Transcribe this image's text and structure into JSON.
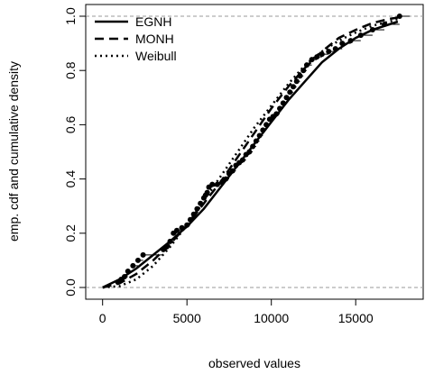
{
  "chart_data": {
    "type": "line",
    "title": "",
    "xlabel": "observed values",
    "ylabel": "emp. cdf and cumulative density",
    "xlim": [
      -1000,
      19000
    ],
    "ylim": [
      0,
      1
    ],
    "x_ticks": [
      "0",
      "5000",
      "10000",
      "15000"
    ],
    "y_ticks": [
      "0.0",
      "0.2",
      "0.4",
      "0.6",
      "0.8",
      "1.0"
    ],
    "x_tick_values": [
      0,
      5000,
      10000,
      15000
    ],
    "y_tick_values": [
      0,
      0.2,
      0.4,
      0.6,
      0.8,
      1.0
    ],
    "reference_lines_y": [
      0,
      1
    ],
    "legend_position": "top-left",
    "series": [
      {
        "name": "EGNH",
        "style": "solid",
        "x": [
          0,
          1000,
          2000,
          3000,
          4000,
          5000,
          6000,
          7000,
          8000,
          9000,
          10000,
          11000,
          12000,
          13000,
          14000,
          15000,
          16000,
          17000,
          17500
        ],
        "y": [
          0.0,
          0.03,
          0.07,
          0.12,
          0.17,
          0.225,
          0.29,
          0.37,
          0.45,
          0.53,
          0.61,
          0.69,
          0.76,
          0.83,
          0.88,
          0.92,
          0.95,
          0.97,
          0.98
        ]
      },
      {
        "name": "MONH",
        "style": "dashed",
        "x": [
          0,
          1000,
          2000,
          3000,
          4000,
          5000,
          6000,
          7000,
          8000,
          9000,
          10000,
          11000,
          12000,
          13000,
          14000,
          15000,
          16000,
          17000,
          17500
        ],
        "y": [
          0.0,
          0.015,
          0.05,
          0.1,
          0.16,
          0.23,
          0.31,
          0.39,
          0.48,
          0.57,
          0.66,
          0.74,
          0.81,
          0.87,
          0.92,
          0.95,
          0.975,
          0.99,
          0.995
        ]
      },
      {
        "name": "Weibull",
        "style": "dotted",
        "x": [
          0,
          1000,
          2000,
          3000,
          4000,
          5000,
          6000,
          7000,
          8000,
          9000,
          10000,
          11000,
          12000,
          13000,
          14000,
          15000,
          16000,
          17000,
          17500
        ],
        "y": [
          0.0,
          0.005,
          0.03,
          0.08,
          0.15,
          0.23,
          0.32,
          0.41,
          0.5,
          0.59,
          0.67,
          0.75,
          0.82,
          0.87,
          0.91,
          0.94,
          0.965,
          0.98,
          0.99
        ]
      }
    ],
    "ecdf": {
      "x": [
        900,
        1100,
        1300,
        1500,
        1800,
        2100,
        2400,
        3600,
        3800,
        4000,
        4200,
        4400,
        4700,
        5000,
        5200,
        5400,
        5600,
        5800,
        6000,
        6100,
        6200,
        6300,
        6500,
        6800,
        7100,
        7300,
        7500,
        7700,
        7900,
        8100,
        8300,
        8500,
        8700,
        8900,
        9100,
        9300,
        9500,
        9700,
        9900,
        10100,
        10300,
        10500,
        10700,
        10900,
        11100,
        11300,
        11500,
        11700,
        11900,
        12100,
        12400,
        12700,
        13000,
        13400,
        13800,
        14200,
        14700,
        15300,
        16000,
        16700,
        17600
      ],
      "y": [
        0.02,
        0.03,
        0.04,
        0.06,
        0.08,
        0.1,
        0.12,
        0.14,
        0.15,
        0.17,
        0.2,
        0.21,
        0.22,
        0.23,
        0.25,
        0.27,
        0.29,
        0.31,
        0.33,
        0.34,
        0.35,
        0.37,
        0.38,
        0.38,
        0.39,
        0.4,
        0.42,
        0.43,
        0.45,
        0.46,
        0.47,
        0.49,
        0.5,
        0.52,
        0.54,
        0.56,
        0.58,
        0.6,
        0.62,
        0.63,
        0.64,
        0.66,
        0.68,
        0.7,
        0.72,
        0.74,
        0.76,
        0.78,
        0.8,
        0.82,
        0.84,
        0.85,
        0.86,
        0.87,
        0.88,
        0.9,
        0.91,
        0.93,
        0.95,
        0.97,
        1.0
      ]
    }
  }
}
